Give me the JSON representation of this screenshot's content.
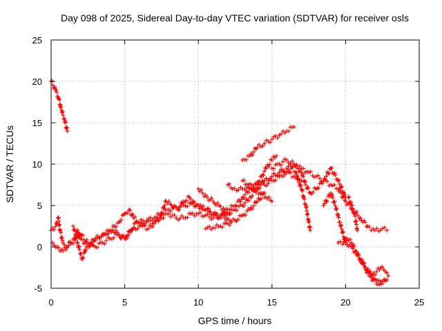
{
  "chart_data": {
    "type": "scatter",
    "title": "Day 098 of 2025, Sidereal Day-to-day VTEC variation (SDTVAR) for receiver osls",
    "xlabel": "GPS time / hours",
    "ylabel": "SDTVAR / TECUs",
    "xlim": [
      0,
      25
    ],
    "ylim": [
      -5,
      25
    ],
    "xticks": [
      0,
      5,
      10,
      15,
      20,
      25
    ],
    "yticks": [
      -5,
      0,
      5,
      10,
      15,
      20,
      25
    ],
    "grid": true,
    "marker": "+",
    "color": "#ff0000",
    "series": [
      {
        "name": "s1",
        "x": [
          0.0,
          0.3,
          0.5,
          0.7,
          0.9,
          1.1
        ],
        "y": [
          20.0,
          19.0,
          18.0,
          16.5,
          15.5,
          14.0
        ]
      },
      {
        "name": "s2",
        "x": [
          0.0,
          0.3,
          0.5,
          0.6,
          0.8,
          1.0,
          1.3,
          1.6,
          1.8,
          2.0,
          2.3,
          2.6,
          3.0,
          3.3,
          3.6,
          4.0,
          4.3,
          4.6,
          5.0,
          5.3,
          5.6,
          6.0,
          6.5,
          7.0,
          7.5,
          8.0,
          8.5,
          9.0,
          9.5,
          10.0,
          10.5,
          11.0,
          11.5,
          12.0,
          12.5,
          13.0,
          13.5,
          14.0,
          14.5,
          15.0,
          15.5,
          16.0,
          16.5,
          17.0,
          17.3,
          17.6,
          18.0,
          18.5,
          19.0,
          19.5,
          20.0
        ],
        "y": [
          2.0,
          2.5,
          3.5,
          2.0,
          0.5,
          0.0,
          0.5,
          1.0,
          2.0,
          1.0,
          0.5,
          0.0,
          0.8,
          1.0,
          1.5,
          2.0,
          2.5,
          3.0,
          4.0,
          4.5,
          3.5,
          3.0,
          3.2,
          3.5,
          4.0,
          4.5,
          4.8,
          5.0,
          5.2,
          5.0,
          4.5,
          4.0,
          3.8,
          4.0,
          4.5,
          5.0,
          6.0,
          7.0,
          8.0,
          8.5,
          9.0,
          9.5,
          10.0,
          9.0,
          7.5,
          6.5,
          7.0,
          8.0,
          9.5,
          8.0,
          6.0
        ]
      },
      {
        "name": "s3",
        "x": [
          0.1,
          0.4,
          0.8,
          1.2,
          1.6,
          2.0,
          2.5,
          3.0,
          3.5,
          4.0,
          4.5,
          5.0,
          5.5,
          6.0,
          6.5,
          7.0,
          7.5,
          8.0,
          8.5,
          9.0,
          9.5,
          10.0,
          10.5,
          11.0,
          11.5,
          12.0,
          12.5,
          13.0,
          13.5,
          14.0,
          14.5,
          15.0,
          15.5,
          16.0,
          16.5,
          17.0
        ],
        "y": [
          0.5,
          0.0,
          -0.5,
          0.2,
          0.8,
          1.5,
          0.5,
          0.0,
          0.5,
          1.0,
          1.5,
          1.0,
          2.0,
          2.5,
          3.0,
          3.0,
          3.5,
          4.0,
          3.5,
          3.5,
          4.0,
          4.0,
          3.8,
          3.5,
          3.8,
          4.5,
          5.0,
          6.0,
          7.0,
          7.5,
          8.0,
          8.5,
          9.0,
          9.0,
          8.5,
          8.0
        ]
      },
      {
        "name": "s4",
        "x": [
          1.5,
          1.8,
          2.1,
          2.4,
          2.7,
          3.0,
          3.4,
          3.8,
          4.2,
          4.6,
          5.0,
          5.4,
          5.8,
          6.2,
          6.6,
          7.0,
          7.4,
          7.8,
          8.2,
          8.6,
          9.0,
          9.4,
          9.8,
          10.2,
          10.6,
          11.0,
          11.4,
          11.8,
          12.2
        ],
        "y": [
          2.5,
          0.5,
          -1.5,
          0.0,
          0.5,
          1.0,
          1.2,
          1.5,
          2.0,
          1.5,
          1.0,
          2.0,
          3.0,
          2.5,
          2.2,
          2.8,
          3.5,
          5.5,
          5.0,
          4.5,
          5.5,
          6.0,
          5.0,
          4.8,
          4.5,
          4.0,
          3.5,
          3.5,
          3.0
        ]
      },
      {
        "name": "s5",
        "x": [
          10.0,
          10.3,
          10.6,
          11.0,
          11.4,
          11.8,
          12.2
        ],
        "y": [
          7.0,
          6.5,
          6.0,
          5.5,
          5.0,
          4.5,
          4.0
        ]
      },
      {
        "name": "s6",
        "x": [
          10.5,
          11.0,
          11.5,
          12.0,
          12.5,
          13.0,
          13.5,
          14.0,
          14.5
        ],
        "y": [
          2.2,
          2.3,
          2.5,
          2.8,
          3.2,
          3.8,
          4.5,
          5.5,
          6.5
        ]
      },
      {
        "name": "s7",
        "x": [
          12.0,
          12.3,
          12.6,
          13.0,
          13.3,
          13.6,
          14.0,
          14.3,
          14.6,
          15.0,
          15.3
        ],
        "y": [
          7.5,
          7.0,
          6.8,
          7.0,
          7.2,
          7.5,
          7.8,
          8.5,
          9.5,
          10.5,
          11.0
        ]
      },
      {
        "name": "s8",
        "x": [
          13.0,
          13.4,
          13.8,
          14.2,
          14.6,
          15.0
        ],
        "y": [
          8.0,
          7.5,
          7.0,
          6.5,
          6.0,
          5.5
        ]
      },
      {
        "name": "s9",
        "x": [
          13.0,
          13.5,
          14.0,
          14.5,
          15.0,
          15.5,
          16.0,
          16.5
        ],
        "y": [
          10.5,
          11.0,
          12.0,
          12.5,
          13.0,
          13.5,
          14.0,
          14.5
        ]
      },
      {
        "name": "s10",
        "x": [
          14.5,
          15.0,
          15.5,
          16.0,
          16.3,
          16.6,
          17.0,
          17.3,
          17.6
        ],
        "y": [
          7.5,
          8.0,
          8.5,
          9.0,
          9.5,
          9.0,
          7.0,
          5.0,
          2.0
        ]
      },
      {
        "name": "s11",
        "x": [
          15.0,
          15.5,
          16.0,
          16.5,
          17.0,
          17.5,
          18.0,
          18.5,
          19.0,
          19.5,
          20.0,
          20.5,
          21.0,
          21.5,
          22.0,
          22.5,
          22.8
        ],
        "y": [
          9.5,
          10.0,
          10.5,
          10.0,
          9.5,
          9.0,
          8.5,
          8.0,
          7.5,
          7.0,
          5.5,
          4.5,
          3.5,
          2.5,
          2.0,
          2.2,
          2.0
        ]
      },
      {
        "name": "s12",
        "x": [
          18.5,
          19.0,
          19.3,
          19.6,
          20.0,
          20.4,
          20.8,
          21.2,
          21.6,
          22.0,
          22.4,
          22.8
        ],
        "y": [
          5.0,
          6.5,
          5.0,
          3.0,
          0.5,
          0.0,
          -1.0,
          -2.0,
          -3.0,
          -4.0,
          -4.5,
          -4.0
        ]
      },
      {
        "name": "s13",
        "x": [
          19.5,
          19.8,
          20.1,
          20.4,
          20.7,
          21.0,
          21.3,
          21.6,
          21.9,
          22.2,
          22.5,
          22.8
        ],
        "y": [
          0.5,
          0.3,
          1.0,
          0.5,
          -0.5,
          -1.5,
          -2.5,
          -3.5,
          -4.0,
          -4.5,
          -4.2,
          -4.0
        ]
      },
      {
        "name": "s14",
        "x": [
          20.2,
          20.4,
          20.6,
          20.8
        ],
        "y": [
          6.0,
          5.0,
          4.0,
          2.0
        ]
      },
      {
        "name": "s15",
        "x": [
          21.5,
          21.8,
          22.1,
          22.4,
          22.7,
          22.9
        ],
        "y": [
          -3.0,
          -3.5,
          -3.0,
          -2.5,
          -3.0,
          -3.5
        ]
      }
    ]
  }
}
